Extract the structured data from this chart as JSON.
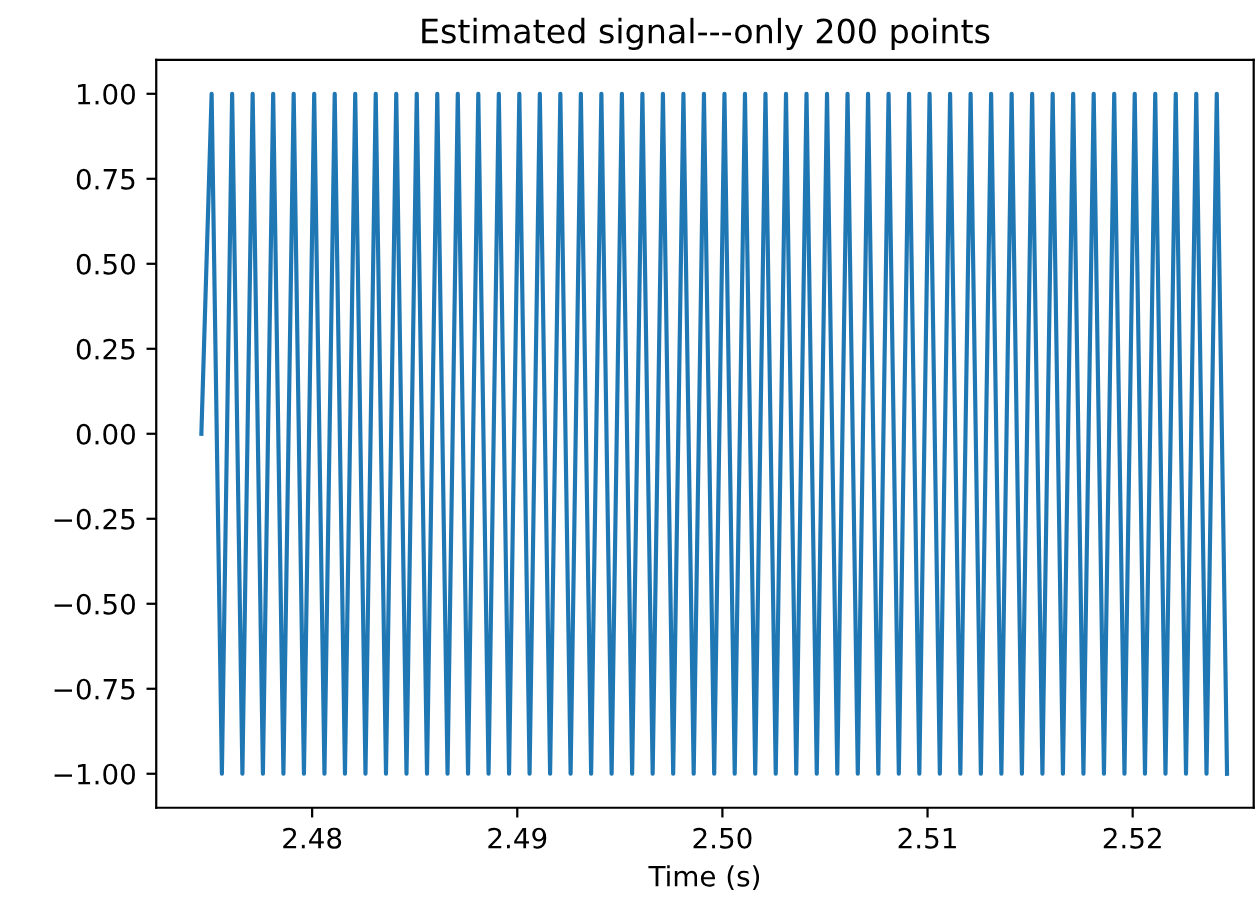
{
  "chart_data": {
    "type": "line",
    "title": "Estimated signal---only 200 points",
    "xlabel": "Time (s)",
    "x": [
      2.4746,
      2.4751,
      2.4756,
      2.4761,
      2.4766,
      2.4771,
      2.4776,
      2.4781,
      2.4786,
      2.4791,
      2.4796,
      2.4801,
      2.4806,
      2.4811,
      2.4816,
      2.4821,
      2.4826,
      2.4831,
      2.4836,
      2.4841,
      2.4846,
      2.4851,
      2.4856,
      2.4861,
      2.4866,
      2.4871,
      2.4876,
      2.4881,
      2.4886,
      2.4891,
      2.4896,
      2.4901,
      2.4906,
      2.4911,
      2.4916,
      2.4921,
      2.4926,
      2.4931,
      2.4936,
      2.4941,
      2.4946,
      2.4951,
      2.4956,
      2.4961,
      2.4966,
      2.4971,
      2.4976,
      2.4981,
      2.4986,
      2.4991,
      2.4996,
      2.5001,
      2.5006,
      2.5011,
      2.5016,
      2.5021,
      2.5026,
      2.5031,
      2.5036,
      2.5041,
      2.5046,
      2.5051,
      2.5056,
      2.5061,
      2.5066,
      2.5071,
      2.5076,
      2.5081,
      2.5086,
      2.5091,
      2.5096,
      2.5101,
      2.5106,
      2.5111,
      2.5116,
      2.5121,
      2.5126,
      2.5131,
      2.5136,
      2.5141,
      2.5146,
      2.5151,
      2.5156,
      2.5161,
      2.5166,
      2.5171,
      2.5176,
      2.5181,
      2.5186,
      2.5191,
      2.5196,
      2.5201,
      2.5206,
      2.5211,
      2.5216,
      2.5221,
      2.5226,
      2.5231,
      2.5236,
      2.5241,
      2.5246
    ],
    "series": [
      {
        "color": "#1f77b4",
        "values": [
          0,
          1,
          -1,
          1,
          -1,
          1,
          -1,
          1,
          -1,
          1,
          -1,
          1,
          -1,
          1,
          -1,
          1,
          -1,
          1,
          -1,
          1,
          -1,
          1,
          -1,
          1,
          -1,
          1,
          -1,
          1,
          -1,
          1,
          -1,
          1,
          -1,
          1,
          -1,
          1,
          -1,
          1,
          -1,
          1,
          -1,
          1,
          -1,
          1,
          -1,
          1,
          -1,
          1,
          -1,
          1,
          -1,
          1,
          -1,
          1,
          -1,
          1,
          -1,
          1,
          -1,
          1,
          -1,
          1,
          -1,
          1,
          -1,
          1,
          -1,
          1,
          -1,
          1,
          -1,
          1,
          -1,
          1,
          -1,
          1,
          -1,
          1,
          -1,
          1,
          -1,
          1,
          -1,
          1,
          -1,
          1,
          -1,
          1,
          -1,
          1,
          -1,
          1,
          -1,
          1,
          -1,
          1,
          -1,
          1,
          -1,
          1,
          -1
        ]
      }
    ],
    "xlim": [
      2.4724,
      2.5259
    ],
    "xticks": [
      2.48,
      2.49,
      {
        "value": 2.5,
        "label": "2.50"
      },
      2.51,
      2.52
    ],
    "ylim": [
      -1.1,
      1.1
    ],
    "yticks": [
      {
        "value": -1,
        "label": "−1.00"
      },
      {
        "value": -0.75,
        "label": "−0.75"
      },
      {
        "value": -0.5,
        "label": "−0.50"
      },
      {
        "value": -0.25,
        "label": "−0.25"
      },
      {
        "value": 0,
        "label": "0.00"
      },
      {
        "value": 0.25,
        "label": "0.25"
      },
      {
        "value": 0.5,
        "label": "0.50"
      },
      {
        "value": 0.75,
        "label": "0.75"
      },
      {
        "value": 1,
        "label": "1.00"
      }
    ],
    "grid": false,
    "legend": false,
    "line_style": "solid"
  }
}
